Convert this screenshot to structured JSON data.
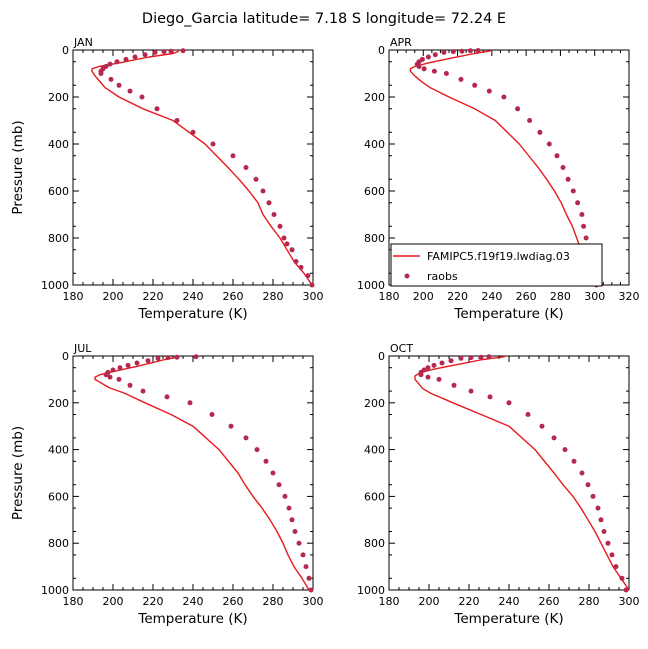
{
  "figure": {
    "title": "Diego_Garcia   latitude= 7.18 S longitude= 72.24 E"
  },
  "legend": {
    "model_label": "FAMIPC5.f19f19.lwdiag.03",
    "obs_label": "raobs",
    "placement": "lower-right of APR panel"
  },
  "chart_data": [
    {
      "type": "line",
      "title": "JAN",
      "xlabel": "Temperature (K)",
      "ylabel": "Pressure (mb)",
      "xlim": [
        180,
        300
      ],
      "xticks": [
        180,
        200,
        220,
        240,
        260,
        280,
        300
      ],
      "ylim": [
        1000,
        0
      ],
      "yticks": [
        0,
        200,
        400,
        600,
        800,
        1000
      ],
      "y_inverted": true,
      "colors": {
        "model": "#e8191f",
        "obs": "#b5294f"
      },
      "series": [
        {
          "name": "FAMIPC5.f19f19.lwdiag.03",
          "style": "line",
          "x": [
            299.5,
            295.5,
            290.5,
            287,
            283.5,
            279,
            275,
            272.5,
            268,
            263,
            257.5,
            246,
            230,
            215,
            203,
            196,
            193,
            191,
            189.5,
            189.5,
            193,
            203,
            218,
            230,
            233
          ],
          "y": [
            1000,
            950,
            900,
            850,
            800,
            750,
            700,
            650,
            600,
            550,
            500,
            400,
            300,
            250,
            200,
            160,
            130,
            110,
            90,
            80,
            70,
            55,
            30,
            15,
            5
          ]
        },
        {
          "name": "raobs",
          "style": "scatter",
          "x": [
            299.5,
            297.5,
            294,
            291.5,
            289.5,
            287,
            285.5,
            283.5,
            280.5,
            278,
            275,
            271.5,
            266.5,
            260,
            250,
            240,
            232,
            222,
            214.5,
            208.5,
            203,
            199,
            194,
            194,
            195,
            196.5,
            198.5,
            202,
            206.5,
            211,
            216,
            221,
            225.5,
            229,
            235
          ],
          "y": [
            1000,
            960,
            925,
            900,
            850,
            825,
            800,
            750,
            700,
            650,
            600,
            550,
            500,
            450,
            400,
            350,
            300,
            250,
            200,
            175,
            150,
            125,
            100,
            90,
            80,
            70,
            60,
            50,
            40,
            30,
            20,
            10,
            7,
            5,
            3
          ]
        }
      ]
    },
    {
      "type": "line",
      "title": "APR",
      "xlabel": "Temperature (K)",
      "ylabel": "Pressure (mb)",
      "xlim": [
        180,
        320
      ],
      "xticks": [
        180,
        200,
        220,
        240,
        260,
        280,
        300,
        320
      ],
      "ylim": [
        1000,
        0
      ],
      "yticks": [
        0,
        200,
        400,
        600,
        800,
        1000
      ],
      "y_inverted": true,
      "colors": {
        "model": "#e8191f",
        "obs": "#b5294f"
      },
      "series": [
        {
          "name": "FAMIPC5.f19f19.lwdiag.03",
          "style": "line",
          "x": [
            304,
            299,
            295,
            292,
            289.5,
            287,
            283.5,
            280.5,
            276.5,
            272,
            267,
            256,
            242,
            230,
            215,
            204,
            199,
            195,
            192.5,
            192.5,
            195,
            203,
            216,
            230,
            238,
            240
          ],
          "y": [
            1000,
            950,
            900,
            850,
            800,
            750,
            700,
            650,
            600,
            550,
            500,
            400,
            300,
            250,
            200,
            160,
            135,
            110,
            90,
            80,
            70,
            55,
            35,
            15,
            5,
            2
          ]
        },
        {
          "name": "raobs",
          "style": "scatter",
          "x": [
            301,
            299,
            297,
            296,
            295,
            293.5,
            292.5,
            290,
            287.5,
            284.5,
            281.5,
            278,
            273.5,
            268,
            262,
            255,
            247,
            238.5,
            230,
            222,
            213.5,
            206.5,
            200.5,
            197.5,
            196.5,
            197.5,
            199.5,
            203,
            207,
            212,
            217.5,
            222.5,
            227.5,
            232
          ],
          "y": [
            1000,
            950,
            900,
            850,
            800,
            750,
            700,
            650,
            600,
            550,
            500,
            450,
            400,
            350,
            300,
            250,
            200,
            175,
            150,
            125,
            100,
            90,
            80,
            70,
            60,
            50,
            40,
            30,
            20,
            10,
            7,
            5,
            3,
            2
          ]
        }
      ]
    },
    {
      "type": "line",
      "title": "JUL",
      "xlabel": "Temperature (K)",
      "ylabel": "Pressure (mb)",
      "xlim": [
        180,
        300
      ],
      "xticks": [
        180,
        200,
        220,
        240,
        260,
        280,
        300
      ],
      "ylim": [
        1000,
        0
      ],
      "yticks": [
        0,
        200,
        400,
        600,
        800,
        1000
      ],
      "y_inverted": true,
      "colors": {
        "model": "#e8191f",
        "obs": "#b5294f"
      },
      "series": [
        {
          "name": "FAMIPC5.f19f19.lwdiag.03",
          "style": "line",
          "x": [
            298,
            294.5,
            290.5,
            287.5,
            285,
            282,
            278.5,
            274.5,
            270,
            266,
            262.5,
            253,
            240,
            229,
            216,
            206,
            198,
            194,
            191,
            191,
            193.5,
            201,
            214,
            226,
            232,
            233
          ],
          "y": [
            1000,
            950,
            900,
            850,
            800,
            750,
            700,
            650,
            600,
            550,
            500,
            400,
            300,
            250,
            200,
            160,
            135,
            115,
            100,
            90,
            80,
            65,
            40,
            15,
            5,
            2
          ]
        },
        {
          "name": "raobs",
          "style": "scatter",
          "x": [
            299,
            298,
            296.5,
            295,
            293,
            291,
            289.5,
            288,
            286,
            283,
            280,
            276.5,
            272,
            266.5,
            259,
            249.5,
            238.5,
            227,
            215,
            208.5,
            203,
            198.5,
            196.5,
            197.5,
            200,
            203.5,
            207.5,
            212,
            217.5,
            222.5,
            227.5,
            232,
            241.5
          ],
          "y": [
            1000,
            950,
            900,
            850,
            800,
            750,
            700,
            650,
            600,
            550,
            500,
            450,
            400,
            350,
            300,
            250,
            200,
            175,
            150,
            125,
            100,
            90,
            80,
            70,
            60,
            50,
            40,
            30,
            20,
            10,
            7,
            5,
            3
          ]
        }
      ]
    },
    {
      "type": "line",
      "title": "OCT",
      "xlabel": "Temperature (K)",
      "ylabel": "Pressure (mb)",
      "xlim": [
        180,
        300
      ],
      "xticks": [
        180,
        200,
        220,
        240,
        260,
        280,
        300
      ],
      "ylim": [
        1000,
        0
      ],
      "yticks": [
        0,
        200,
        400,
        600,
        800,
        1000
      ],
      "y_inverted": true,
      "colors": {
        "model": "#e8191f",
        "obs": "#b5294f"
      },
      "series": [
        {
          "name": "FAMIPC5.f19f19.lwdiag.03",
          "style": "line",
          "x": [
            300,
            296,
            292,
            289,
            286,
            283,
            279.5,
            276,
            272,
            267,
            262.5,
            253,
            240,
            226,
            212,
            201,
            197,
            194.5,
            193,
            193,
            196,
            203,
            215,
            227,
            236,
            238
          ],
          "y": [
            1000,
            950,
            900,
            850,
            800,
            750,
            700,
            650,
            600,
            550,
            500,
            400,
            300,
            250,
            200,
            160,
            140,
            115,
            100,
            85,
            70,
            55,
            35,
            15,
            5,
            2
          ]
        },
        {
          "name": "raobs",
          "style": "scatter",
          "x": [
            298.5,
            296.5,
            293.5,
            291.5,
            289.5,
            287.5,
            286,
            284.5,
            282,
            279.5,
            276.5,
            272.5,
            268,
            262.5,
            256.5,
            249.5,
            240,
            230.5,
            221,
            212.5,
            205,
            199.5,
            196,
            196,
            197.5,
            199.5,
            202.5,
            206.5,
            211,
            216,
            221,
            226,
            230
          ],
          "y": [
            1000,
            950,
            900,
            850,
            800,
            750,
            700,
            650,
            600,
            550,
            500,
            450,
            400,
            350,
            300,
            250,
            200,
            175,
            150,
            125,
            100,
            90,
            80,
            70,
            60,
            50,
            40,
            30,
            20,
            10,
            7,
            5,
            3
          ]
        }
      ]
    }
  ]
}
